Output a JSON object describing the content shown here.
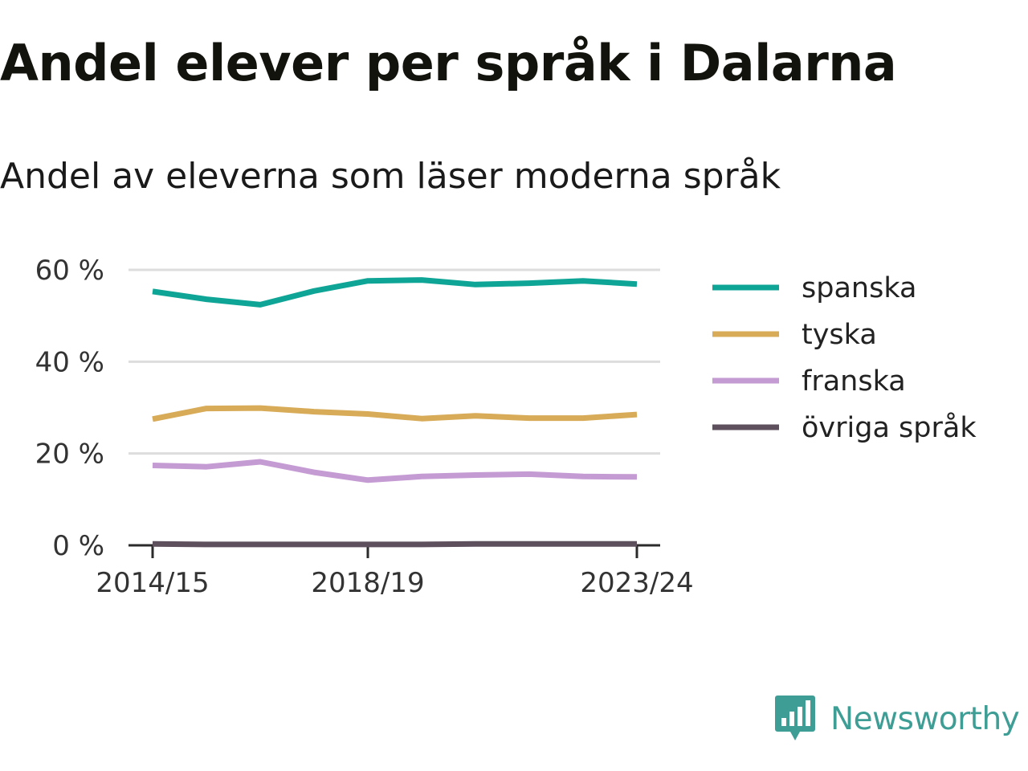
{
  "header": {
    "title": "Andel elever per språk i Dalarna",
    "subtitle": "Andel av eleverna som läser moderna språk"
  },
  "brand": {
    "name": "Newsworthy",
    "color": "#3e9e95",
    "icon": "bar-chart-speech-bubble-icon"
  },
  "chart_data": {
    "type": "line",
    "title": "Andel elever per språk i Dalarna",
    "subtitle": "Andel av eleverna som läser moderna språk",
    "x": [
      "2014/15",
      "2015/16",
      "2016/17",
      "2017/18",
      "2018/19",
      "2019/20",
      "2020/21",
      "2021/22",
      "2022/23",
      "2023/24"
    ],
    "x_tick_labels": [
      "2014/15",
      "2018/19",
      "2023/24"
    ],
    "y_ticks": [
      0,
      20,
      40,
      60
    ],
    "y_tick_labels": [
      "0 %",
      "20 %",
      "40 %",
      "60 %"
    ],
    "ylim": [
      0,
      60
    ],
    "grid": true,
    "legend_position": "right",
    "series": [
      {
        "name": "spanska",
        "color": "#0fa596",
        "values": [
          55.3,
          53.6,
          52.4,
          55.4,
          57.6,
          57.8,
          56.8,
          57.1,
          57.6,
          56.9
        ]
      },
      {
        "name": "tyska",
        "color": "#d7ab57",
        "values": [
          27.5,
          29.8,
          29.9,
          29.1,
          28.6,
          27.6,
          28.2,
          27.7,
          27.7,
          28.5
        ]
      },
      {
        "name": "franska",
        "color": "#c59bd3",
        "values": [
          17.4,
          17.1,
          18.2,
          15.9,
          14.2,
          15.0,
          15.3,
          15.5,
          15.0,
          14.9
        ]
      },
      {
        "name": "övriga språk",
        "color": "#5e505d",
        "values": [
          0.3,
          0.2,
          0.2,
          0.2,
          0.2,
          0.2,
          0.3,
          0.3,
          0.3,
          0.3
        ]
      }
    ]
  }
}
